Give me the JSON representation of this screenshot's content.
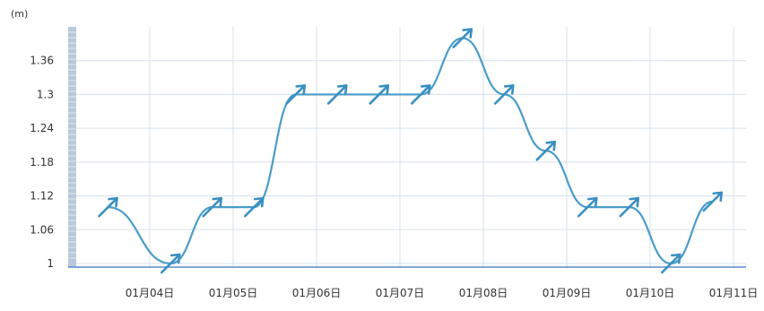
{
  "chart_data": {
    "type": "line",
    "unit": "(m)",
    "categories": [
      "01月04日",
      "01月05日",
      "01月06日",
      "01月07日",
      "01月08日",
      "01月09日",
      "01月10日",
      "01月11日"
    ],
    "y_ticks": [
      "1",
      "1.06",
      "1.12",
      "1.18",
      "1.24",
      "1.3",
      "1.36"
    ],
    "ylim": [
      1,
      1.42
    ],
    "grid": true,
    "series": [
      {
        "x": [
          "01-03 12:00",
          "01-04 06:00",
          "01-04 18:00",
          "01-05 06:00",
          "01-05 18:00",
          "01-06 06:00",
          "01-06 18:00",
          "01-07 06:00",
          "01-07 18:00",
          "01-08 06:00",
          "01-08 18:00",
          "01-09 06:00",
          "01-09 18:00",
          "01-10 06:00",
          "01-10 18:00"
        ],
        "values": [
          1.1,
          1.0,
          1.1,
          1.1,
          1.3,
          1.3,
          1.3,
          1.3,
          1.4,
          1.3,
          1.2,
          1.1,
          1.1,
          1.0,
          1.11
        ]
      }
    ]
  },
  "colors": {
    "line": "#4a9cc9",
    "arrow": "#3a8fc0",
    "grid": "#d7e0ea",
    "axis": "#5a8ccc",
    "axis_band": "#b9c8dc",
    "text": "#333333"
  },
  "icons": {
    "wave_direction": "northeast-arrow-icon"
  }
}
